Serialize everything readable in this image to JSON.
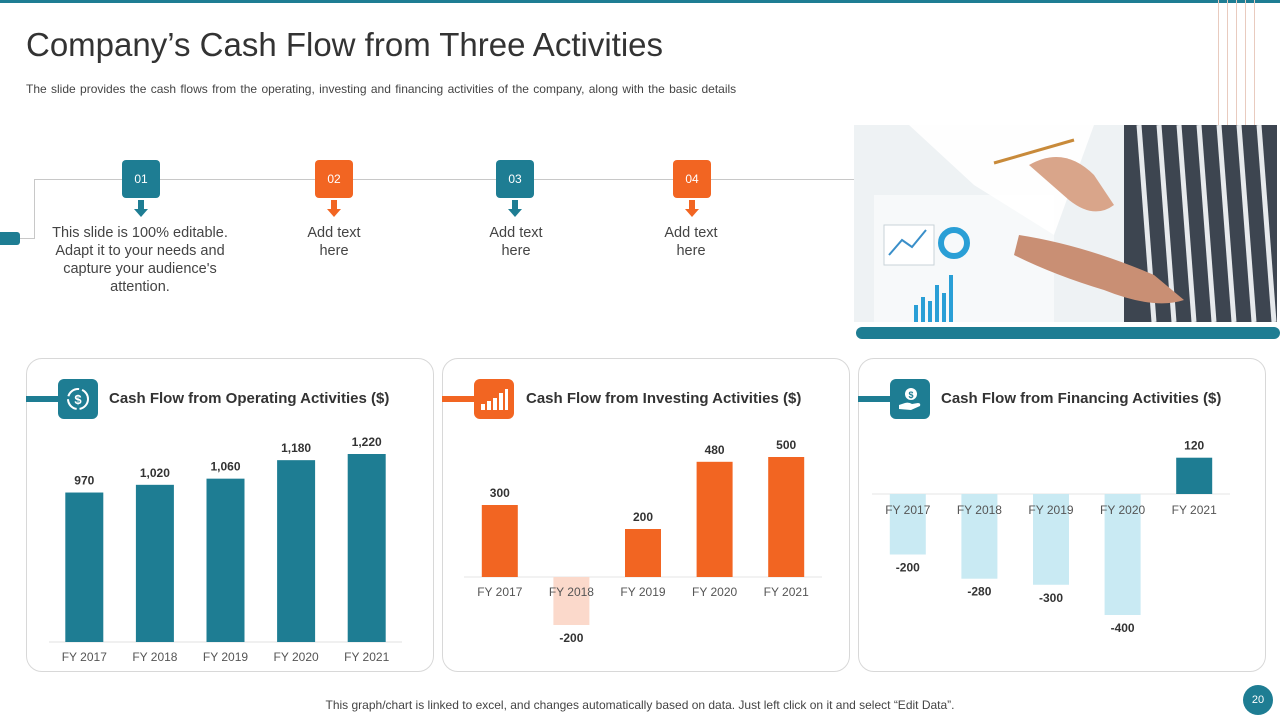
{
  "title": "Company’s Cash Flow from Three Activities",
  "subtitle": "The slide provides  the cash flows from the operating,  investing and financing  activities of the company,  along with the basic details",
  "colors": {
    "teal": "#1e7d93",
    "orange": "#f26522",
    "light_teal": "#c9eaf3",
    "light_orange": "#fbd9cb"
  },
  "steps": [
    {
      "num": "01",
      "text": "This slide is 100% editable. Adapt it to your needs and capture your audience's attention.",
      "color": "teal"
    },
    {
      "num": "02",
      "text": "Add text here",
      "color": "orange"
    },
    {
      "num": "03",
      "text": "Add text here",
      "color": "teal"
    },
    {
      "num": "04",
      "text": "Add text here",
      "color": "orange"
    }
  ],
  "panels": [
    {
      "title": "Cash Flow from Operating Activities ($)",
      "icon": "cash-cycle-icon",
      "color": "teal"
    },
    {
      "title": "Cash Flow from Investing Activities ($)",
      "icon": "rising-bars-icon",
      "color": "orange"
    },
    {
      "title": "Cash Flow from Financing Activities ($)",
      "icon": "hand-holding-dollar-icon",
      "color": "teal"
    }
  ],
  "chart_data": [
    {
      "type": "bar",
      "title": "Cash Flow from Operating Activities ($)",
      "categories": [
        "FY 2017",
        "FY 2018",
        "FY 2019",
        "FY 2020",
        "FY 2021"
      ],
      "values": [
        970,
        1020,
        1060,
        1180,
        1220
      ],
      "value_labels": [
        "970",
        "1,020",
        "1,060",
        "1,180",
        "1,220"
      ],
      "color": "#1e7d93",
      "ylim": [
        0,
        1220
      ]
    },
    {
      "type": "bar",
      "title": "Cash Flow from Investing Activities ($)",
      "categories": [
        "FY 2017",
        "FY 2018",
        "FY 2019",
        "FY 2020",
        "FY 2021"
      ],
      "values": [
        300,
        -200,
        200,
        480,
        500
      ],
      "value_labels": [
        "300",
        "-200",
        "200",
        "480",
        "500"
      ],
      "color": "#f26522",
      "negative_color": "#fbd9cb",
      "ylim": [
        -200,
        500
      ]
    },
    {
      "type": "bar",
      "title": "Cash Flow from Financing Activities ($)",
      "categories": [
        "FY 2017",
        "FY 2018",
        "FY 2019",
        "FY 2020",
        "FY 2021"
      ],
      "values": [
        -200,
        -280,
        -300,
        -400,
        120
      ],
      "value_labels": [
        "-200",
        "-280",
        "-300",
        "-400",
        "120"
      ],
      "color": "#1e7d93",
      "negative_color": "#c9eaf3",
      "ylim": [
        -400,
        120
      ]
    }
  ],
  "footer": "This graph/chart is linked to excel,  and changes automatically based on data. Just left click on it and select “Edit Data”.",
  "page_number": "20"
}
